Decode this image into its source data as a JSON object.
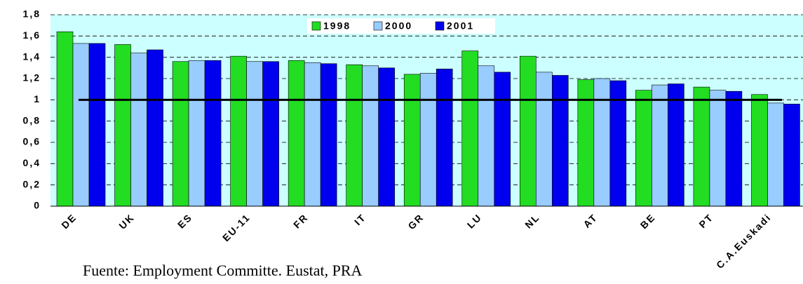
{
  "chart_data": {
    "type": "bar",
    "categories": [
      "DE",
      "UK",
      "ES",
      "EU-11",
      "FR",
      "IT",
      "GR",
      "LU",
      "NL",
      "AT",
      "BE",
      "PT",
      "C.A.Euskadi"
    ],
    "series": [
      {
        "name": "1998",
        "color": "#22dd22",
        "values": [
          1.64,
          1.52,
          1.36,
          1.41,
          1.37,
          1.33,
          1.24,
          1.46,
          1.41,
          1.19,
          1.09,
          1.12,
          1.05
        ]
      },
      {
        "name": "2000",
        "color": "#99ccff",
        "values": [
          1.53,
          1.44,
          1.37,
          1.36,
          1.35,
          1.32,
          1.25,
          1.32,
          1.26,
          1.2,
          1.14,
          1.09,
          0.97
        ]
      },
      {
        "name": "2001",
        "color": "#0000ee",
        "values": [
          1.53,
          1.47,
          1.37,
          1.36,
          1.34,
          1.3,
          1.29,
          1.26,
          1.23,
          1.18,
          1.15,
          1.08,
          0.96
        ]
      }
    ],
    "ylim": [
      0,
      1.8
    ],
    "yticks": [
      0,
      {
        "value": 0.2,
        "label": "0,2"
      },
      {
        "value": 0.4,
        "label": "0,4"
      },
      {
        "value": 0.6,
        "label": "0,6"
      },
      {
        "value": 0.8,
        "label": "0,8"
      },
      1,
      {
        "value": 1.2,
        "label": "1,2"
      },
      {
        "value": 1.4,
        "label": "1,4"
      },
      {
        "value": 1.6,
        "label": "1,6"
      },
      {
        "value": 1.8,
        "label": "1,8"
      }
    ],
    "grid": true,
    "reference_line": 1,
    "source": "Fuente: Employment Committe. Eustat, PRA"
  }
}
